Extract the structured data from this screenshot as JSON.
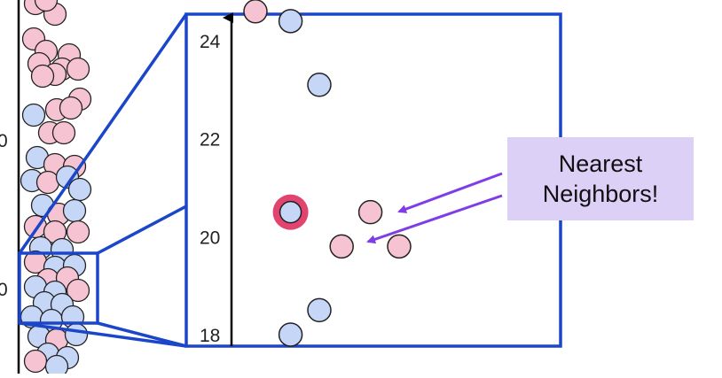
{
  "colors": {
    "class_a": "#f6c3d2",
    "class_b": "#c6d6f7",
    "outline": "#222222",
    "frame": "#1b46c9",
    "highlight": "#e0446f",
    "arrow": "#7e3de6",
    "callout_bg": "#ddd0f7"
  },
  "zoom_axis": {
    "min": 17.6,
    "max": 25.0,
    "ticks": [
      {
        "value": 18,
        "label": "18"
      },
      {
        "value": 20,
        "label": "20"
      },
      {
        "value": 22,
        "label": "22"
      },
      {
        "value": 24,
        "label": "24"
      }
    ]
  },
  "left_axis_cut_labels": [
    "0",
    "0"
  ],
  "zoom_points": [
    {
      "id": "p1",
      "x": 1.0,
      "y": 24.6,
      "cls": "a"
    },
    {
      "id": "p2",
      "x": 2.1,
      "y": 24.4,
      "cls": "b"
    },
    {
      "id": "p3",
      "x": 3.0,
      "y": 23.1,
      "cls": "b"
    },
    {
      "id": "p4",
      "x": 4.6,
      "y": 20.5,
      "cls": "a"
    },
    {
      "id": "p5",
      "x": 3.7,
      "y": 19.8,
      "cls": "a"
    },
    {
      "id": "p6",
      "x": 5.5,
      "y": 19.8,
      "cls": "a"
    },
    {
      "id": "p7",
      "x": 3.0,
      "y": 18.5,
      "cls": "b"
    },
    {
      "id": "p8",
      "x": 2.1,
      "y": 18.0,
      "cls": "b"
    }
  ],
  "query_point": {
    "x": 2.1,
    "y": 20.5,
    "cls": "b"
  },
  "callout": {
    "line1": "Nearest",
    "line2": "Neighbors!"
  }
}
